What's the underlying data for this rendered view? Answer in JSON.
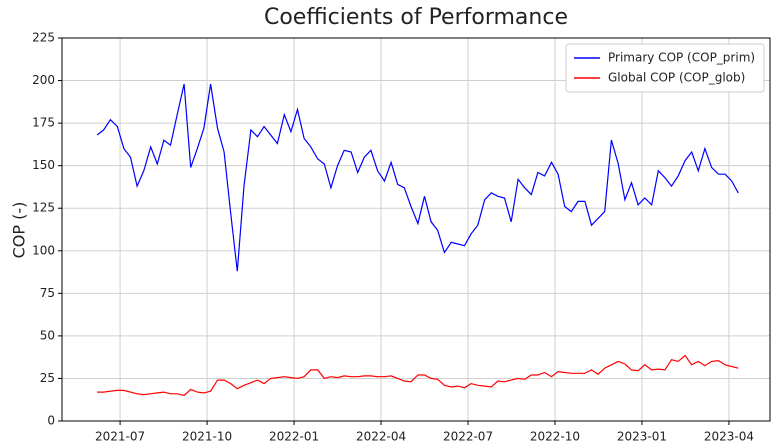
{
  "chart_data": {
    "type": "line",
    "title": "Coefficients of Performance",
    "ylabel": "COP (-)",
    "x": [
      2021.434,
      2021.453,
      2021.472,
      2021.492,
      2021.511,
      2021.53,
      2021.549,
      2021.568,
      2021.588,
      2021.607,
      2021.626,
      2021.645,
      2021.664,
      2021.684,
      2021.703,
      2021.722,
      2021.741,
      2021.76,
      2021.78,
      2021.799,
      2021.818,
      2021.837,
      2021.856,
      2021.876,
      2021.895,
      2021.914,
      2021.933,
      2021.952,
      2021.972,
      2021.991,
      2022.01,
      2022.029,
      2022.048,
      2022.068,
      2022.087,
      2022.106,
      2022.125,
      2022.144,
      2022.164,
      2022.183,
      2022.202,
      2022.221,
      2022.24,
      2022.26,
      2022.279,
      2022.298,
      2022.317,
      2022.336,
      2022.356,
      2022.375,
      2022.394,
      2022.413,
      2022.432,
      2022.452,
      2022.471,
      2022.49,
      2022.509,
      2022.528,
      2022.548,
      2022.567,
      2022.586,
      2022.605,
      2022.624,
      2022.644,
      2022.663,
      2022.682,
      2022.701,
      2022.72,
      2022.74,
      2022.759,
      2022.778,
      2022.797,
      2022.816,
      2022.836,
      2022.855,
      2022.874,
      2022.893,
      2022.912,
      2022.932,
      2022.951,
      2022.97,
      2022.989,
      2023.008,
      2023.028,
      2023.047,
      2023.066,
      2023.085,
      2023.104,
      2023.124,
      2023.143,
      2023.162,
      2023.181,
      2023.2,
      2023.22,
      2023.239,
      2023.258,
      2023.277
    ],
    "series": [
      {
        "name": "Primary COP (COP_prim)",
        "color": "#0000ff",
        "values": [
          168,
          171,
          177,
          173,
          160,
          155,
          138,
          147,
          161,
          151,
          165,
          162,
          180,
          198,
          149,
          160,
          172,
          198,
          172,
          158,
          122,
          88,
          138,
          171,
          167,
          173,
          168,
          163,
          180,
          170,
          183,
          166,
          161,
          154,
          151,
          137,
          150,
          159,
          158,
          146,
          155,
          159,
          147,
          141,
          152,
          139,
          137,
          126,
          116,
          132,
          117,
          112,
          99,
          105,
          104,
          103,
          110,
          115,
          130,
          134,
          132,
          131,
          117,
          142,
          137,
          133,
          146,
          144,
          152,
          145,
          126,
          123,
          129,
          129,
          115,
          119,
          123,
          165,
          151,
          130,
          140,
          127,
          131,
          127,
          147,
          143,
          138,
          144,
          153,
          158,
          147,
          160,
          149,
          145,
          145,
          141,
          134
        ]
      },
      {
        "name": "Global COP (COP_glob)",
        "color": "#ff0000",
        "values": [
          17,
          17,
          17.5,
          18,
          18,
          17,
          16,
          15.5,
          16,
          16.5,
          17,
          16,
          16,
          15,
          18.5,
          17,
          16.5,
          17.5,
          24,
          24,
          22,
          19,
          21,
          22.5,
          24,
          22,
          25,
          25.5,
          26,
          25.5,
          25,
          26,
          30,
          30,
          25,
          26,
          25.5,
          26.5,
          26,
          26,
          26.5,
          26.5,
          26,
          26,
          26.5,
          25,
          23.5,
          23,
          27,
          27,
          25,
          24.5,
          21,
          20,
          20.5,
          19.5,
          22,
          21,
          20.5,
          20,
          23.5,
          23,
          24,
          25,
          24.5,
          27,
          27,
          28.5,
          26,
          29,
          28.5,
          28,
          28,
          28,
          30,
          27.5,
          31,
          33,
          35,
          33.5,
          30,
          29.5,
          33,
          30,
          30.5,
          30,
          36,
          35,
          38.5,
          33,
          35,
          32.5,
          35,
          35.5,
          33,
          32,
          31
        ]
      }
    ],
    "xlim": [
      2021.333,
      2023.368
    ],
    "xticks": [
      {
        "value": 2021.5,
        "label": "2021-07"
      },
      {
        "value": 2021.75,
        "label": "2021-10"
      },
      {
        "value": 2022.0,
        "label": "2022-01"
      },
      {
        "value": 2022.25,
        "label": "2022-04"
      },
      {
        "value": 2022.5,
        "label": "2022-07"
      },
      {
        "value": 2022.75,
        "label": "2022-10"
      },
      {
        "value": 2023.0,
        "label": "2023-01"
      },
      {
        "value": 2023.25,
        "label": "2023-04"
      }
    ],
    "ylim": [
      0,
      225
    ],
    "yticks": [
      0,
      25,
      50,
      75,
      100,
      125,
      150,
      175,
      200,
      225
    ],
    "grid": true,
    "legend": "upper right"
  }
}
